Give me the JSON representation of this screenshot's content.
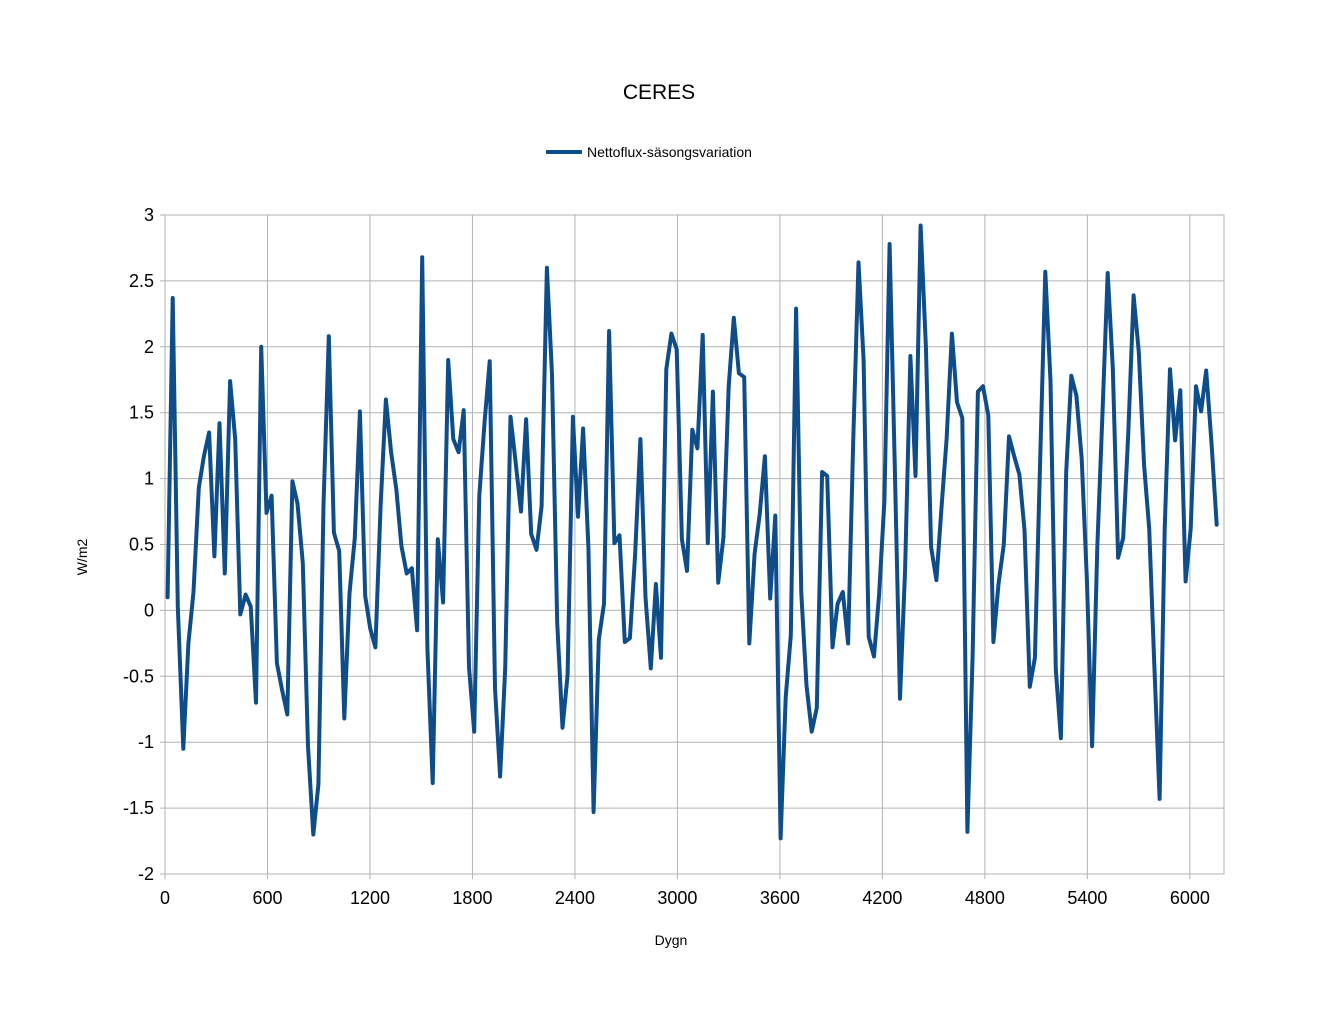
{
  "chart_data": {
    "type": "line",
    "title": "CERES",
    "xlabel": "Dygn",
    "ylabel": "W/m2",
    "xlim": [
      0,
      6200
    ],
    "ylim": [
      -2,
      3
    ],
    "x_ticks": [
      0,
      600,
      1200,
      1800,
      2400,
      3000,
      3600,
      4200,
      4800,
      5400,
      6000
    ],
    "y_ticks": [
      3,
      2.5,
      2,
      1.5,
      1,
      0.5,
      0,
      -0.5,
      -1,
      -1.5,
      -2
    ],
    "grid": true,
    "legend_position": "top",
    "series": [
      {
        "name": "Nettoflux-säsongsvariation",
        "color": "#0e4d8a",
        "x": [
          15,
          45,
          75,
          107,
          137,
          167,
          198,
          228,
          258,
          289,
          319,
          350,
          381,
          411,
          441,
          472,
          502,
          533,
          563,
          594,
          624,
          655,
          685,
          716,
          746,
          776,
          807,
          837,
          868,
          898,
          928,
          959,
          989,
          1020,
          1050,
          1080,
          1111,
          1141,
          1172,
          1202,
          1232,
          1263,
          1293,
          1324,
          1354,
          1384,
          1415,
          1445,
          1476,
          1506,
          1536,
          1567,
          1597,
          1628,
          1658,
          1688,
          1719,
          1749,
          1780,
          1810,
          1840,
          1871,
          1901,
          1932,
          1962,
          1992,
          2023,
          2053,
          2084,
          2114,
          2144,
          2175,
          2205,
          2236,
          2266,
          2296,
          2327,
          2357,
          2388,
          2418,
          2448,
          2479,
          2509,
          2540,
          2570,
          2600,
          2631,
          2661,
          2692,
          2722,
          2752,
          2783,
          2813,
          2844,
          2874,
          2904,
          2935,
          2965,
          2996,
          3026,
          3056,
          3087,
          3117,
          3148,
          3178,
          3208,
          3239,
          3269,
          3300,
          3330,
          3360,
          3391,
          3421,
          3452,
          3482,
          3512,
          3543,
          3573,
          3604,
          3634,
          3664,
          3695,
          3725,
          3756,
          3786,
          3816,
          3847,
          3877,
          3908,
          3938,
          3968,
          3999,
          4029,
          4060,
          4090,
          4120,
          4151,
          4181,
          4212,
          4242,
          4272,
          4303,
          4333,
          4364,
          4394,
          4424,
          4455,
          4485,
          4516,
          4546,
          4576,
          4607,
          4637,
          4668,
          4698,
          4728,
          4759,
          4789,
          4820,
          4850,
          4880,
          4911,
          4941,
          4972,
          5002,
          5032,
          5063,
          5093,
          5124,
          5154,
          5184,
          5215,
          5245,
          5276,
          5306,
          5336,
          5367,
          5397,
          5428,
          5458,
          5488,
          5519,
          5549,
          5580,
          5610,
          5640,
          5671,
          5701,
          5732,
          5762,
          5792,
          5823,
          5853,
          5884,
          5914,
          5944,
          5975,
          6005,
          6036,
          6066,
          6096,
          6127,
          6157
        ],
        "values": [
          0.1,
          2.37,
          0.03,
          -1.05,
          -0.25,
          0.14,
          0.93,
          1.17,
          1.35,
          0.41,
          1.42,
          0.28,
          1.74,
          1.3,
          -0.03,
          0.12,
          0.03,
          -0.7,
          2.0,
          0.74,
          0.87,
          -0.4,
          -0.6,
          -0.79,
          0.98,
          0.81,
          0.36,
          -1.03,
          -1.7,
          -1.32,
          0.8,
          2.08,
          0.59,
          0.45,
          -0.82,
          0.13,
          0.55,
          1.51,
          0.11,
          -0.14,
          -0.28,
          0.81,
          1.6,
          1.2,
          0.92,
          0.49,
          0.28,
          0.32,
          -0.15,
          2.68,
          -0.29,
          -1.31,
          0.54,
          0.06,
          1.9,
          1.3,
          1.2,
          1.52,
          -0.43,
          -0.92,
          0.87,
          1.43,
          1.89,
          -0.59,
          -1.26,
          -0.44,
          1.47,
          1.12,
          0.75,
          1.45,
          0.58,
          0.46,
          0.79,
          2.6,
          1.79,
          -0.09,
          -0.89,
          -0.49,
          1.47,
          0.71,
          1.38,
          0.48,
          -1.53,
          -0.22,
          0.05,
          2.12,
          0.51,
          0.57,
          -0.24,
          -0.21,
          0.42,
          1.3,
          0.1,
          -0.44,
          0.2,
          -0.36,
          1.83,
          2.1,
          1.98,
          0.54,
          0.3,
          1.37,
          1.23,
          2.09,
          0.51,
          1.66,
          0.21,
          0.55,
          1.7,
          2.22,
          1.8,
          1.77,
          -0.25,
          0.43,
          0.73,
          1.17,
          0.09,
          0.72,
          -1.73,
          -0.66,
          -0.19,
          2.29,
          0.13,
          -0.57,
          -0.92,
          -0.74,
          1.05,
          1.02,
          -0.28,
          0.05,
          0.14,
          -0.25,
          1.28,
          2.64,
          1.9,
          -0.2,
          -0.35,
          0.12,
          0.83,
          2.78,
          1.12,
          -0.67,
          0.31,
          1.93,
          1.02,
          2.92,
          2.0,
          0.48,
          0.23,
          0.78,
          1.3,
          2.1,
          1.58,
          1.46,
          -1.68,
          -0.35,
          1.66,
          1.7,
          1.48,
          -0.24,
          0.2,
          0.5,
          1.32,
          1.17,
          1.03,
          0.61,
          -0.58,
          -0.36,
          1.15,
          2.57,
          1.74,
          -0.45,
          -0.97,
          1.05,
          1.78,
          1.63,
          1.15,
          0.25,
          -1.03,
          0.48,
          1.48,
          2.56,
          1.84,
          0.4,
          0.55,
          1.35,
          2.39,
          1.96,
          1.1,
          0.62,
          -0.41,
          -1.43,
          0.62,
          1.83,
          1.29,
          1.67,
          0.22,
          0.62,
          1.7,
          1.51,
          1.82,
          1.27,
          0.65
        ]
      }
    ]
  }
}
